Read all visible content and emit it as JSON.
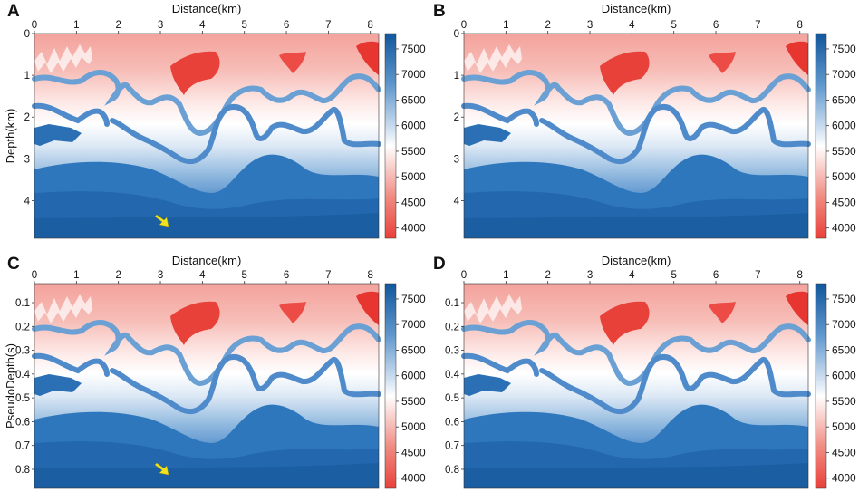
{
  "chart_data": [
    {
      "panel": "A",
      "type": "heatmap",
      "title": "",
      "xlabel": "Distance(km)",
      "ylabel": "Depth(km)",
      "xlim": [
        0,
        8.2
      ],
      "ylim": [
        0,
        4.9
      ],
      "x_ticks": [
        0,
        1,
        2,
        3,
        4,
        5,
        6,
        7,
        8
      ],
      "y_ticks": [
        0,
        1,
        2,
        3,
        4
      ],
      "colorbar": {
        "min": 3800,
        "max": 7800,
        "ticks": [
          4000,
          4500,
          5000,
          5500,
          6000,
          6500,
          7000,
          7500
        ]
      },
      "annotation": {
        "type": "arrow",
        "color": "#f2e21c",
        "at": [
          3.2,
          4.7
        ]
      }
    },
    {
      "panel": "B",
      "type": "heatmap",
      "title": "",
      "xlabel": "Distance(km)",
      "ylabel": "",
      "xlim": [
        0,
        8.2
      ],
      "ylim": [
        0,
        4.9
      ],
      "x_ticks": [
        0,
        1,
        2,
        3,
        4,
        5,
        6,
        7,
        8
      ],
      "y_ticks": [
        0,
        1,
        2,
        3,
        4
      ],
      "colorbar": {
        "min": 3800,
        "max": 7800,
        "ticks": [
          4000,
          4500,
          5000,
          5500,
          6000,
          6500,
          7000,
          7500
        ]
      }
    },
    {
      "panel": "C",
      "type": "heatmap",
      "title": "",
      "xlabel": "Distance(km)",
      "ylabel": "PseudoDepth(s)",
      "xlim": [
        0,
        8.2
      ],
      "ylim": [
        0.02,
        0.88
      ],
      "x_ticks": [
        0,
        1,
        2,
        3,
        4,
        5,
        6,
        7,
        8
      ],
      "y_ticks": [
        0.1,
        0.2,
        0.3,
        0.4,
        0.5,
        0.6,
        0.7,
        0.8
      ],
      "colorbar": {
        "min": 3800,
        "max": 7800,
        "ticks": [
          4000,
          4500,
          5000,
          5500,
          6000,
          6500,
          7000,
          7500
        ]
      },
      "annotation": {
        "type": "arrow",
        "color": "#f2e21c",
        "at": [
          3.2,
          0.82
        ]
      }
    },
    {
      "panel": "D",
      "type": "heatmap",
      "title": "",
      "xlabel": "Distance(km)",
      "ylabel": "",
      "xlim": [
        0,
        8.2
      ],
      "ylim": [
        0.02,
        0.88
      ],
      "x_ticks": [
        0,
        1,
        2,
        3,
        4,
        5,
        6,
        7,
        8
      ],
      "y_ticks": [
        0.1,
        0.2,
        0.3,
        0.4,
        0.5,
        0.6,
        0.7,
        0.8
      ],
      "colorbar": {
        "min": 3800,
        "max": 7800,
        "ticks": [
          4000,
          4500,
          5000,
          5500,
          6000,
          6500,
          7000,
          7500
        ]
      }
    }
  ],
  "colors": {
    "low_velocity": "#e8413a",
    "mid_velocity": "#ffffff",
    "high_velocity": "#1560a6",
    "arrow": "#f2e21c"
  }
}
